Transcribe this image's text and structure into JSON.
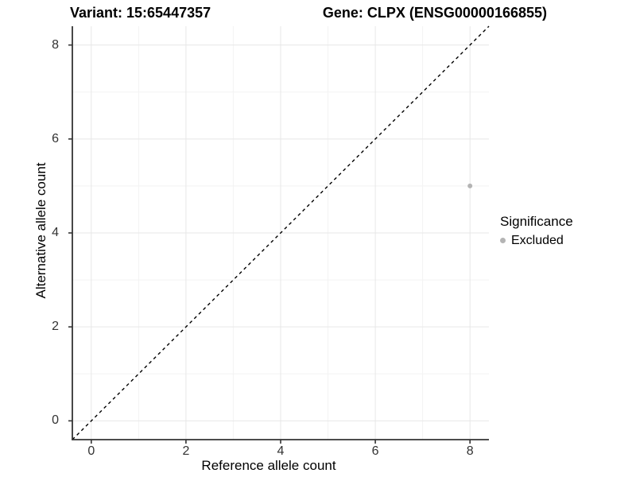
{
  "chart_data": {
    "type": "scatter",
    "title_left": "Variant: 15:65447357",
    "title_right": "Gene: CLPX (ENSG00000166855)",
    "xlabel": "Reference allele count",
    "ylabel": "Alternative allele count",
    "x_ticks": [
      0,
      2,
      4,
      6,
      8
    ],
    "y_ticks": [
      0,
      2,
      4,
      6,
      8
    ],
    "x_minor_ticks": [
      1,
      3,
      5,
      7
    ],
    "y_minor_ticks": [
      1,
      3,
      5,
      7
    ],
    "xlim": [
      -0.4,
      8.4
    ],
    "ylim": [
      -0.4,
      8.4
    ],
    "grid": "major_and_minor",
    "identity_line": {
      "style": "dashed",
      "color": "#000000",
      "from": [
        -0.4,
        -0.4
      ],
      "to": [
        8.4,
        8.4
      ]
    },
    "series": [
      {
        "name": "Excluded",
        "color": "#b4b4b4",
        "points": [
          {
            "x": 8,
            "y": 5
          }
        ]
      }
    ],
    "legend": {
      "title": "Significance",
      "position": "right",
      "entries": [
        {
          "label": "Excluded",
          "color": "#b4b4b4"
        }
      ]
    },
    "colors": {
      "axis_line": "#333333",
      "tick_mark": "#333333",
      "tick_text": "#333333",
      "grid_major": "#e7e7e7",
      "grid_minor": "#f3f3f3",
      "background": "#ffffff"
    }
  }
}
